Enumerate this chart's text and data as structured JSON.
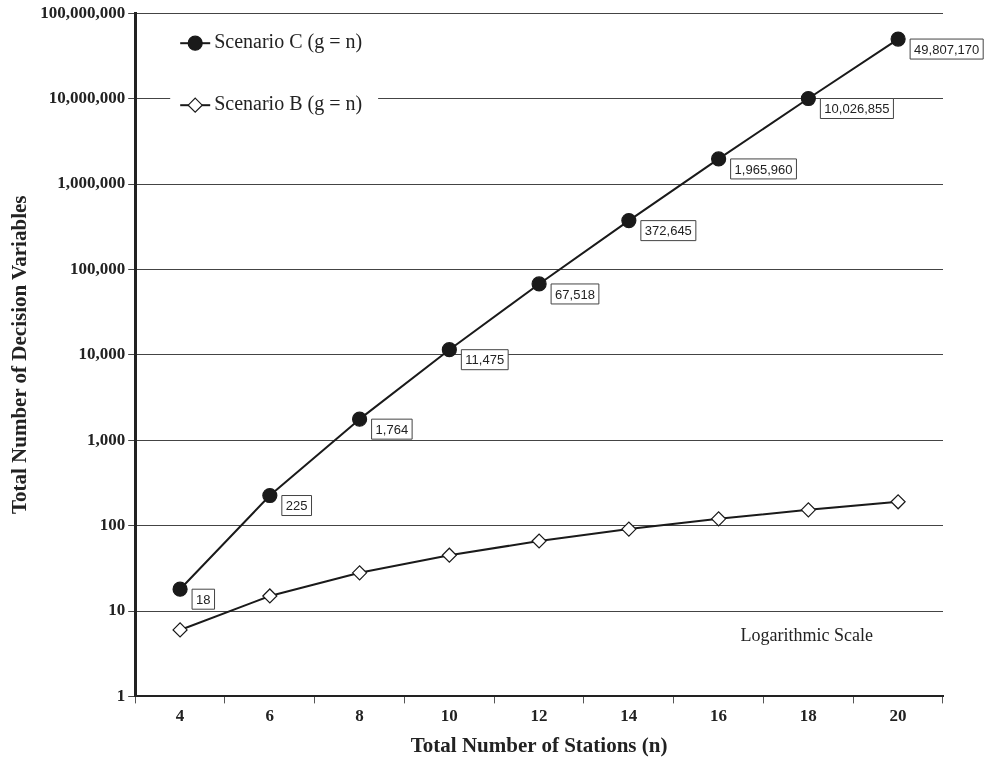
{
  "chart_data": {
    "type": "line",
    "xlabel": "Total Number of Stations (n)",
    "ylabel": "Total Number of Decision Variables",
    "categories": [
      "4",
      "6",
      "8",
      "10",
      "12",
      "14",
      "16",
      "18",
      "20"
    ],
    "series": [
      {
        "name": "Scenario C (g = n)",
        "color": "#1a1a1a",
        "marker": "circle",
        "values": [
          18,
          225,
          1764,
          11475,
          67518,
          372645,
          1965960,
          10026855,
          49807170
        ],
        "value_labels": [
          "18",
          "225",
          "1,764",
          "11,475",
          "67,518",
          "372,645",
          "1,965,960",
          "10,026,855",
          "49,807,170"
        ]
      },
      {
        "name": "Scenario B (g = n)",
        "color": "#1a1a1a",
        "marker": "diamond",
        "values": [
          6,
          15,
          28,
          45,
          66,
          91,
          120,
          153,
          190
        ]
      }
    ],
    "log": "y",
    "ylim": [
      1,
      100000000
    ],
    "yticks": [
      1,
      10,
      100,
      {
        "value": 1000,
        "label": "1,000"
      },
      {
        "value": 10000,
        "label": "10,000"
      },
      {
        "value": 100000,
        "label": "100,000"
      },
      {
        "value": 1000000,
        "label": "1,000,000"
      },
      {
        "value": 10000000,
        "label": "10,000,000"
      },
      {
        "value": 100000000,
        "label": "100,000,000"
      }
    ],
    "grid": "y",
    "legend": "top left",
    "line_style": "solid",
    "annotations": [
      "Logarithmic Scale"
    ]
  }
}
